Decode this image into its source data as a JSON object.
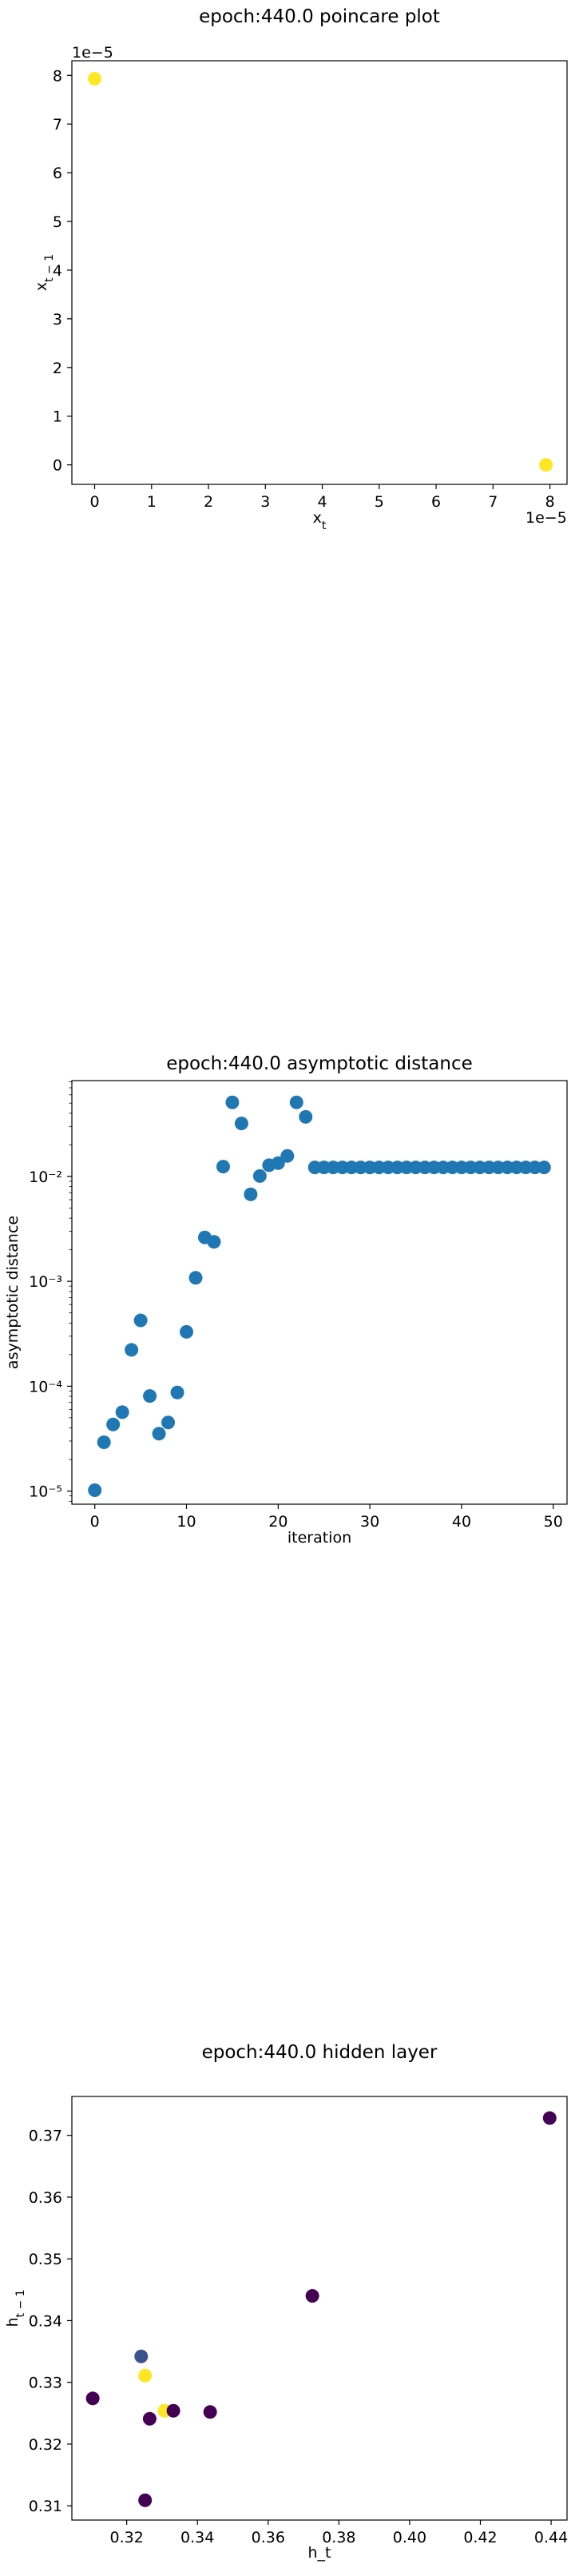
{
  "chart_data": [
    {
      "type": "scatter",
      "title": "epoch:440.0 poincare plot",
      "xlabel": "x_t",
      "ylabel": "x_{t-1}",
      "x_offset_text": "1e−5",
      "y_offset_text": "1e−5",
      "xlim": [
        -4e-06,
        8.3e-05
      ],
      "ylim": [
        -4e-06,
        8.3e-05
      ],
      "xticks": [
        0,
        1,
        2,
        3,
        4,
        5,
        6,
        7,
        8
      ],
      "yticks": [
        0,
        1,
        2,
        3,
        4,
        5,
        6,
        7,
        8
      ],
      "scale": 1e-05,
      "grid": false,
      "points": [
        {
          "x": 0.0,
          "y": 7.93e-05,
          "color": "#fde725"
        },
        {
          "x": 7.93e-05,
          "y": 0.0,
          "color": "#fde725"
        }
      ]
    },
    {
      "type": "scatter",
      "title": "epoch:440.0 asymptotic distance",
      "xlabel": "iteration",
      "ylabel": "asymptotic distance",
      "yscale": "log",
      "xlim": [
        -2.5,
        51.5
      ],
      "ylim": [
        7.5e-06,
        0.082
      ],
      "xticks": [
        0,
        10,
        20,
        30,
        40,
        50
      ],
      "yticks": [
        1e-05,
        0.0001,
        0.001,
        0.01
      ],
      "ytick_labels": [
        "10⁻⁵",
        "10⁻⁴",
        "10⁻³",
        "10⁻²"
      ],
      "grid": false,
      "color": "#1f77b4",
      "x": [
        0,
        1,
        2,
        3,
        4,
        5,
        6,
        7,
        8,
        9,
        10,
        11,
        12,
        13,
        14,
        15,
        16,
        17,
        18,
        19,
        20,
        21,
        22,
        23,
        24,
        25,
        26,
        27,
        28,
        29,
        30,
        31,
        32,
        33,
        34,
        35,
        36,
        37,
        38,
        39,
        40,
        41,
        42,
        43,
        44,
        45,
        46,
        47,
        48,
        49
      ],
      "y": [
        1.02e-05,
        2.92e-05,
        4.32e-05,
        5.65e-05,
        0.000222,
        0.000424,
        8.07e-05,
        3.53e-05,
        4.51e-05,
        8.71e-05,
        0.00033,
        0.00108,
        0.00262,
        0.00238,
        0.0124,
        0.0508,
        0.032,
        0.00675,
        0.0101,
        0.0128,
        0.0134,
        0.0157,
        0.0508,
        0.037,
        0.0122,
        0.0122,
        0.0122,
        0.0122,
        0.0122,
        0.0122,
        0.0122,
        0.0122,
        0.0122,
        0.0122,
        0.0122,
        0.0122,
        0.0122,
        0.0122,
        0.0122,
        0.0122,
        0.0122,
        0.0122,
        0.0122,
        0.0122,
        0.0122,
        0.0122,
        0.0122,
        0.0122,
        0.0122,
        0.0122
      ]
    },
    {
      "type": "scatter",
      "title": "epoch:440.0 hidden layer",
      "xlabel": "h_t",
      "ylabel": "h_{t-1}",
      "xlim": [
        0.3045,
        0.4445
      ],
      "ylim": [
        0.3077,
        0.3763
      ],
      "xticks": [
        0.32,
        0.34,
        0.36,
        0.38,
        0.4,
        0.42,
        0.44
      ],
      "xtick_labels": [
        "0.32",
        "0.34",
        "0.36",
        "0.38",
        "0.40",
        "0.42",
        "0.44"
      ],
      "yticks": [
        0.31,
        0.32,
        0.33,
        0.34,
        0.35,
        0.36,
        0.37
      ],
      "ytick_labels": [
        "0.31",
        "0.32",
        "0.33",
        "0.34",
        "0.35",
        "0.36",
        "0.37"
      ],
      "grid": false,
      "points": [
        {
          "x": 0.3104,
          "y": 0.3274,
          "color": "#440154"
        },
        {
          "x": 0.3241,
          "y": 0.3342,
          "color": "#3b528b"
        },
        {
          "x": 0.3252,
          "y": 0.3109,
          "color": "#440154"
        },
        {
          "x": 0.3252,
          "y": 0.3311,
          "color": "#fde725"
        },
        {
          "x": 0.3265,
          "y": 0.3241,
          "color": "#440154"
        },
        {
          "x": 0.3307,
          "y": 0.3254,
          "color": "#fde725"
        },
        {
          "x": 0.3332,
          "y": 0.3254,
          "color": "#440154"
        },
        {
          "x": 0.3436,
          "y": 0.3252,
          "color": "#440154"
        },
        {
          "x": 0.3725,
          "y": 0.344,
          "color": "#440154"
        },
        {
          "x": 0.4396,
          "y": 0.3728,
          "color": "#440154"
        }
      ]
    }
  ]
}
